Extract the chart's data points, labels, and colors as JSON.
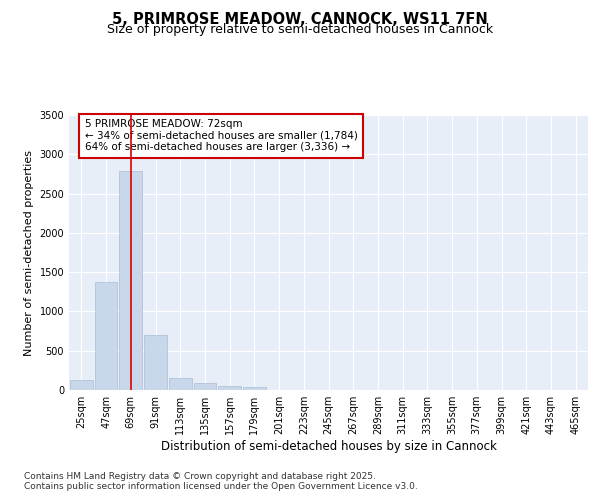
{
  "title_line1": "5, PRIMROSE MEADOW, CANNOCK, WS11 7FN",
  "title_line2": "Size of property relative to semi-detached houses in Cannock",
  "xlabel": "Distribution of semi-detached houses by size in Cannock",
  "ylabel": "Number of semi-detached properties",
  "categories": [
    "25sqm",
    "47sqm",
    "69sqm",
    "91sqm",
    "113sqm",
    "135sqm",
    "157sqm",
    "179sqm",
    "201sqm",
    "223sqm",
    "245sqm",
    "267sqm",
    "289sqm",
    "311sqm",
    "333sqm",
    "355sqm",
    "377sqm",
    "399sqm",
    "421sqm",
    "443sqm",
    "465sqm"
  ],
  "values": [
    130,
    1370,
    2790,
    700,
    155,
    95,
    50,
    35,
    0,
    0,
    0,
    0,
    0,
    0,
    0,
    0,
    0,
    0,
    0,
    0,
    0
  ],
  "bar_color": "#c8d8ea",
  "bar_edge_color": "#aabdd4",
  "vline_x_index": 2,
  "vline_color": "#dd0000",
  "annotation_text": "5 PRIMROSE MEADOW: 72sqm\n← 34% of semi-detached houses are smaller (1,784)\n64% of semi-detached houses are larger (3,336) →",
  "annotation_box_facecolor": "#ffffff",
  "annotation_box_edgecolor": "#cc0000",
  "ylim": [
    0,
    3500
  ],
  "yticks": [
    0,
    500,
    1000,
    1500,
    2000,
    2500,
    3000,
    3500
  ],
  "bg_color": "#ffffff",
  "plot_bg_color": "#e8eef8",
  "grid_color": "#ffffff",
  "footer_line1": "Contains HM Land Registry data © Crown copyright and database right 2025.",
  "footer_line2": "Contains public sector information licensed under the Open Government Licence v3.0.",
  "title_fontsize": 10.5,
  "subtitle_fontsize": 9,
  "tick_fontsize": 7,
  "ylabel_fontsize": 8,
  "xlabel_fontsize": 8.5,
  "annotation_fontsize": 7.5,
  "footer_fontsize": 6.5
}
